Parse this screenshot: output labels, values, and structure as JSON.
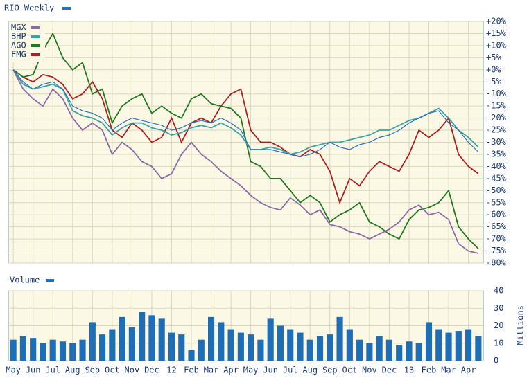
{
  "chart_data": [
    {
      "type": "line",
      "series": [
        {
          "name": "RIO Weekly",
          "color": "#2a72c0",
          "values": [
            0,
            -5,
            -8,
            -6,
            -5,
            -8,
            -15,
            -17,
            -18,
            -20,
            -25,
            -22,
            -20,
            -21,
            -22,
            -23,
            -25,
            -24,
            -22,
            -21,
            -22,
            -20,
            -22,
            -25,
            -33,
            -33,
            -33,
            -34,
            -35,
            -36,
            -35,
            -33,
            -30,
            -32,
            -33,
            -31,
            -30,
            -28,
            -27,
            -25,
            -22,
            -20,
            -18,
            -17,
            -22,
            -25,
            -30,
            -34
          ]
        },
        {
          "name": "MGX",
          "color": "#8c6aa8",
          "values": [
            0,
            -8,
            -12,
            -15,
            -8,
            -12,
            -20,
            -25,
            -22,
            -25,
            -35,
            -30,
            -33,
            -38,
            -40,
            -45,
            -43,
            -35,
            -30,
            -35,
            -38,
            -42,
            -45,
            -48,
            -52,
            -55,
            -57,
            -58,
            -53,
            -56,
            -60,
            -58,
            -64,
            -65,
            -67,
            -68,
            -70,
            -68,
            -66,
            -63,
            -58,
            -56,
            -60,
            -59,
            -62,
            -72,
            -75,
            -76
          ]
        },
        {
          "name": "BHP",
          "color": "#3aa4a4",
          "values": [
            0,
            -6,
            -8,
            -7,
            -6,
            -8,
            -17,
            -19,
            -20,
            -22,
            -27,
            -24,
            -22,
            -22,
            -24,
            -25,
            -27,
            -26,
            -24,
            -23,
            -24,
            -22,
            -24,
            -27,
            -33,
            -33,
            -32,
            -33,
            -35,
            -34,
            -32,
            -31,
            -30,
            -30,
            -29,
            -28,
            -27,
            -25,
            -25,
            -23,
            -21,
            -20,
            -18,
            -16,
            -20,
            -25,
            -28,
            -32
          ]
        },
        {
          "name": "AGO",
          "color": "#1e7a1e",
          "values": [
            0,
            -3,
            -2,
            8,
            15,
            5,
            0,
            3,
            -10,
            -8,
            -22,
            -15,
            -12,
            -10,
            -18,
            -15,
            -18,
            -20,
            -12,
            -10,
            -14,
            -15,
            -16,
            -20,
            -38,
            -40,
            -45,
            -45,
            -50,
            -55,
            -52,
            -55,
            -63,
            -60,
            -58,
            -55,
            -63,
            -65,
            -68,
            -70,
            -62,
            -58,
            -57,
            -55,
            -50,
            -65,
            -70,
            -74
          ]
        },
        {
          "name": "FMG",
          "color": "#b01e1e",
          "values": [
            0,
            -3,
            -5,
            -2,
            -3,
            -6,
            -12,
            -10,
            -5,
            -12,
            -25,
            -28,
            -22,
            -25,
            -30,
            -28,
            -20,
            -30,
            -22,
            -20,
            -22,
            -15,
            -10,
            -8,
            -25,
            -30,
            -30,
            -32,
            -35,
            -36,
            -33,
            -35,
            -42,
            -55,
            -45,
            -48,
            -42,
            -38,
            -40,
            -42,
            -35,
            -25,
            -28,
            -25,
            -20,
            -35,
            -40,
            -43
          ]
        }
      ],
      "ylim": [
        -80,
        20
      ],
      "yticks": [
        {
          "value": 20,
          "label": "+20%"
        },
        {
          "value": 15,
          "label": "+15%"
        },
        {
          "value": 10,
          "label": "+10%"
        },
        {
          "value": 5,
          "label": "+5%"
        },
        {
          "value": 0,
          "label": "+0%"
        },
        {
          "value": -5,
          "label": "-5%"
        },
        {
          "value": -10,
          "label": "-10%"
        },
        {
          "value": -15,
          "label": "-15%"
        },
        {
          "value": -20,
          "label": "-20%"
        },
        {
          "value": -25,
          "label": "-25%"
        },
        {
          "value": -30,
          "label": "-30%"
        },
        {
          "value": -35,
          "label": "-35%"
        },
        {
          "value": -40,
          "label": "-40%"
        },
        {
          "value": -45,
          "label": "-45%"
        },
        {
          "value": -50,
          "label": "-50%"
        },
        {
          "value": -55,
          "label": "-55%"
        },
        {
          "value": -60,
          "label": "-60%"
        },
        {
          "value": -65,
          "label": "-65%"
        },
        {
          "value": -70,
          "label": "-70%"
        },
        {
          "value": -75,
          "label": "-75%"
        },
        {
          "value": -80,
          "label": "-80%"
        }
      ],
      "grid": true
    },
    {
      "type": "bar",
      "series": [
        {
          "name": "Volume",
          "color": "#1f6db5",
          "values": [
            12,
            14,
            13,
            10,
            12,
            11,
            10,
            12,
            22,
            15,
            18,
            25,
            19,
            28,
            26,
            24,
            16,
            15,
            6,
            12,
            25,
            22,
            18,
            16,
            15,
            12,
            24,
            20,
            18,
            16,
            12,
            14,
            15,
            25,
            18,
            12,
            10,
            14,
            12,
            9,
            11,
            10,
            22,
            18,
            16,
            17,
            18,
            14
          ]
        }
      ],
      "categories": [
        "May",
        null,
        "Jun",
        null,
        "Jul",
        null,
        "Aug",
        null,
        "Sep",
        null,
        "Oct",
        null,
        "Nov",
        null,
        "Dec",
        null,
        "12",
        null,
        "Feb",
        null,
        "Mar",
        null,
        "Apr",
        null,
        "May",
        null,
        "Jun",
        null,
        "Jul",
        null,
        "Aug",
        null,
        "Sep",
        null,
        "Oct",
        null,
        "Nov",
        null,
        "Dec",
        null,
        "13",
        null,
        "Feb",
        null,
        "Mar",
        null,
        "Apr",
        null
      ],
      "y_label": "Millions",
      "ylim": [
        0,
        40
      ],
      "yticks": [
        0,
        10,
        20,
        30,
        40
      ],
      "grid": true
    }
  ]
}
